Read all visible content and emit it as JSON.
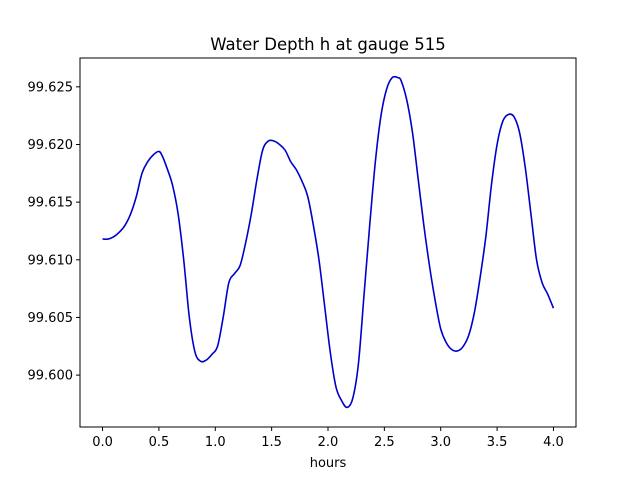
{
  "chart_data": {
    "type": "line",
    "title": "Water Depth h at gauge 515",
    "xlabel": "hours",
    "ylabel": "",
    "xlim": [
      -0.2,
      4.2
    ],
    "ylim": [
      99.5955,
      99.6275
    ],
    "xticks": [
      {
        "value": 0.0,
        "label": "0.0"
      },
      {
        "value": 0.5,
        "label": "0.5"
      },
      {
        "value": 1.0,
        "label": "1.0"
      },
      {
        "value": 1.5,
        "label": "1.5"
      },
      {
        "value": 2.0,
        "label": "2.0"
      },
      {
        "value": 2.5,
        "label": "2.5"
      },
      {
        "value": 3.0,
        "label": "3.0"
      },
      {
        "value": 3.5,
        "label": "3.5"
      },
      {
        "value": 4.0,
        "label": "4.0"
      }
    ],
    "yticks": [
      {
        "value": 99.6,
        "label": "99.600"
      },
      {
        "value": 99.605,
        "label": "99.605"
      },
      {
        "value": 99.61,
        "label": "99.610"
      },
      {
        "value": 99.615,
        "label": "99.615"
      },
      {
        "value": 99.62,
        "label": "99.620"
      },
      {
        "value": 99.625,
        "label": "99.625"
      }
    ],
    "grid": false,
    "series": [
      {
        "color": "#0000cc",
        "x": [
          0.0,
          0.05,
          0.1,
          0.15,
          0.2,
          0.25,
          0.3,
          0.35,
          0.4,
          0.45,
          0.5,
          0.53,
          0.57,
          0.62,
          0.67,
          0.72,
          0.77,
          0.82,
          0.87,
          0.92,
          0.97,
          1.02,
          1.07,
          1.12,
          1.17,
          1.22,
          1.27,
          1.32,
          1.37,
          1.42,
          1.47,
          1.52,
          1.57,
          1.62,
          1.67,
          1.72,
          1.77,
          1.82,
          1.87,
          1.92,
          1.97,
          2.02,
          2.07,
          2.12,
          2.17,
          2.22,
          2.27,
          2.32,
          2.37,
          2.42,
          2.47,
          2.52,
          2.57,
          2.62,
          2.65,
          2.7,
          2.75,
          2.8,
          2.85,
          2.9,
          2.95,
          3.0,
          3.05,
          3.1,
          3.15,
          3.2,
          3.25,
          3.3,
          3.35,
          3.4,
          3.45,
          3.5,
          3.55,
          3.6,
          3.65,
          3.7,
          3.75,
          3.8,
          3.85,
          3.9,
          3.95,
          4.0
        ],
        "y": [
          99.6118,
          99.6118,
          99.612,
          99.6124,
          99.613,
          99.614,
          99.6155,
          99.6175,
          99.6185,
          99.6191,
          99.6194,
          99.619,
          99.618,
          99.6165,
          99.614,
          99.61,
          99.605,
          99.602,
          99.6012,
          99.6013,
          99.6018,
          99.6025,
          99.605,
          99.608,
          99.6088,
          99.6095,
          99.6115,
          99.614,
          99.617,
          99.6195,
          99.6203,
          99.6203,
          99.62,
          99.6195,
          99.6185,
          99.6178,
          99.6168,
          99.6155,
          99.613,
          99.61,
          99.606,
          99.602,
          99.599,
          99.5978,
          99.5972,
          99.598,
          99.601,
          99.607,
          99.613,
          99.6185,
          99.6225,
          99.6248,
          99.6258,
          99.6258,
          99.6255,
          99.6238,
          99.621,
          99.617,
          99.613,
          99.6095,
          99.6065,
          99.604,
          99.6028,
          99.6022,
          99.6021,
          99.6025,
          99.6035,
          99.6055,
          99.6085,
          99.612,
          99.6165,
          99.62,
          99.622,
          99.6226,
          99.6224,
          99.621,
          99.618,
          99.614,
          99.61,
          99.608,
          99.607,
          99.6058
        ]
      }
    ]
  }
}
